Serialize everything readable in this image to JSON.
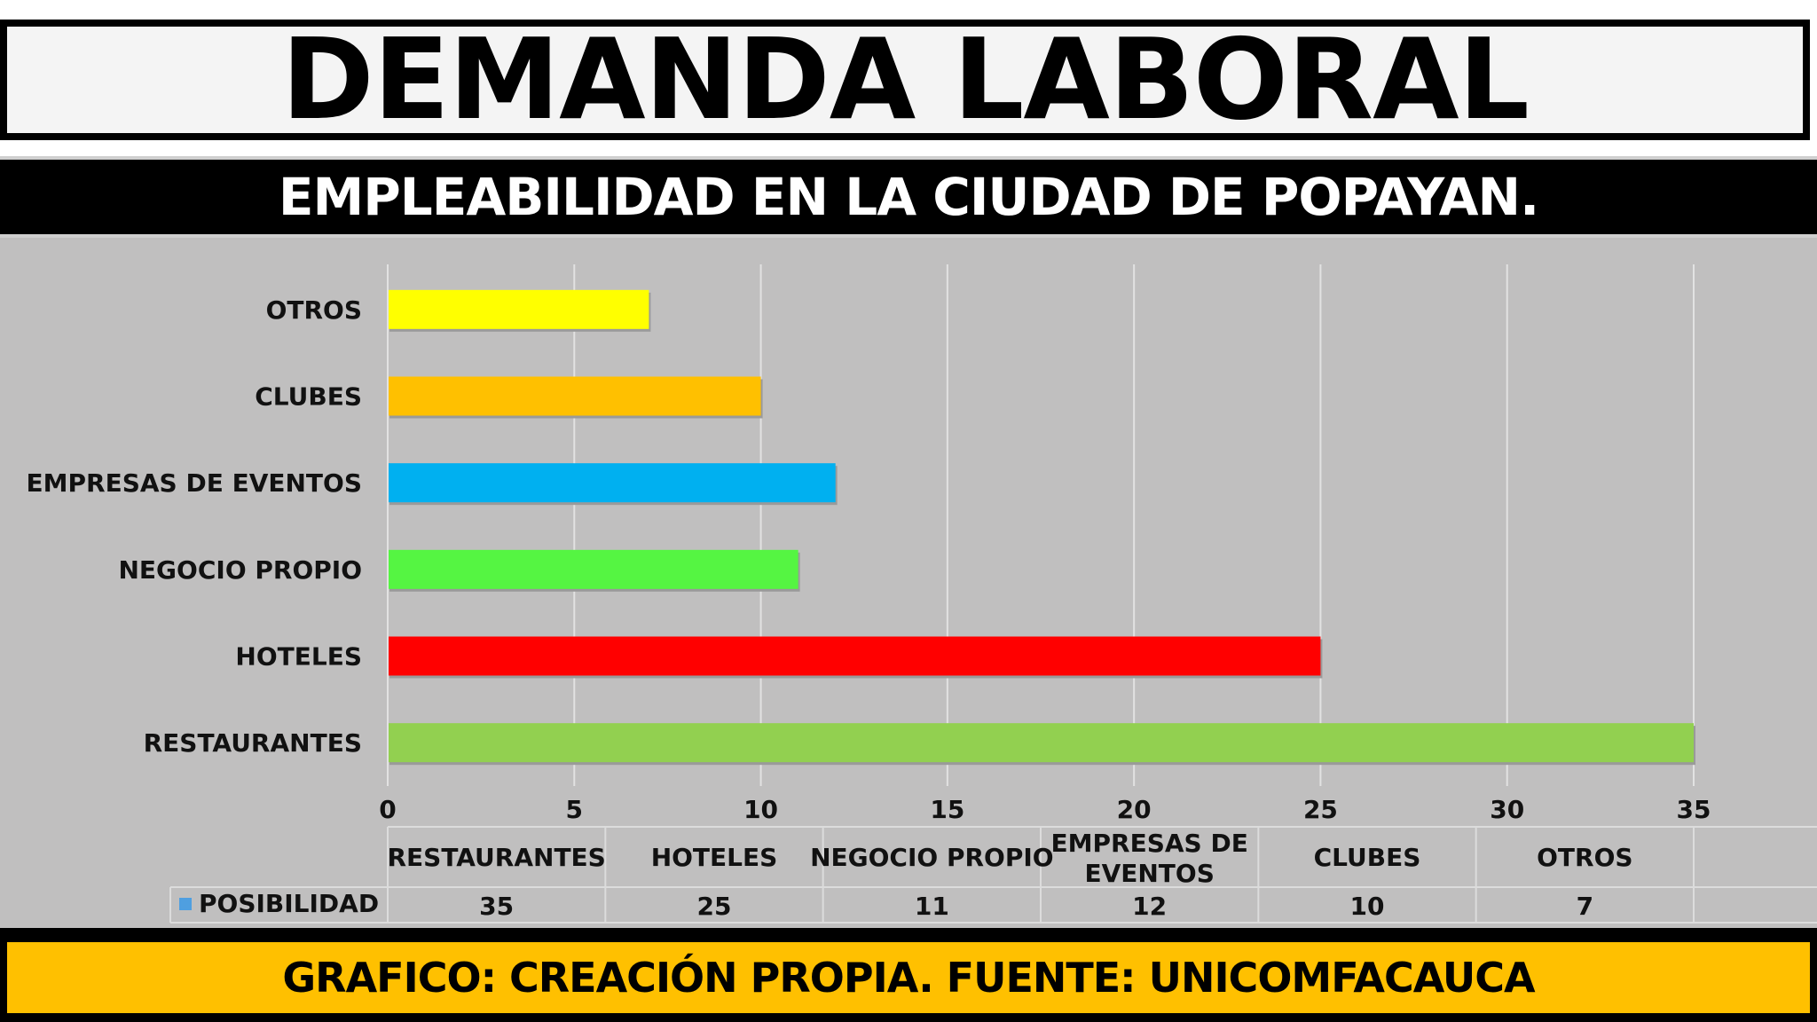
{
  "header": {
    "title": "DEMANDA LABORAL",
    "subtitle": "EMPLEABILIDAD EN LA CIUDAD DE POPAYAN."
  },
  "footer": {
    "text": "GRAFICO: CREACIÓN PROPIA. FUENTE: UNICOMFACAUCA"
  },
  "chart_data": {
    "type": "bar",
    "orientation": "horizontal",
    "categories": [
      "RESTAURANTES",
      "HOTELES",
      "NEGOCIO PROPIO",
      "EMPRESAS DE EVENTOS",
      "CLUBES",
      "OTROS"
    ],
    "table_labels": [
      [
        "RESTAURANTES"
      ],
      [
        "HOTELES"
      ],
      [
        "NEGOCIO PROPIO"
      ],
      [
        "EMPRESAS DE",
        "EVENTOS"
      ],
      [
        "CLUBES"
      ],
      [
        "OTROS"
      ]
    ],
    "series": [
      {
        "name": "POSIBILIDAD",
        "values": [
          35,
          25,
          11,
          12,
          10,
          7
        ]
      }
    ],
    "bar_colors": [
      "#92d050",
      "#ff0000",
      "#55f542",
      "#00b0f0",
      "#ffc000",
      "#ffff00"
    ],
    "legend_color": "#4f9fe0",
    "xlim": [
      0,
      35
    ],
    "x_ticks": [
      0,
      5,
      10,
      15,
      20,
      25,
      30,
      35
    ],
    "grid": true,
    "data_table": true
  }
}
